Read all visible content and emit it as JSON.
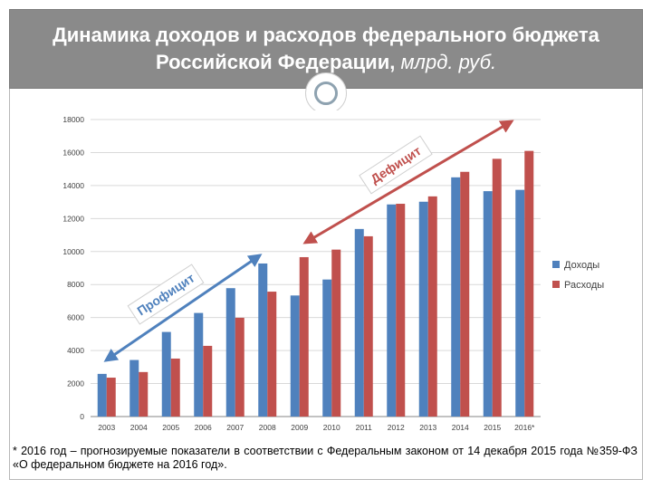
{
  "title": {
    "line1": "Динамика доходов и расходов федерального бюджета",
    "line2_main": "Российской Федерации,",
    "line2_unit": "млрд. руб."
  },
  "chart_data": {
    "type": "bar",
    "categories": [
      "2003",
      "2004",
      "2005",
      "2006",
      "2007",
      "2008",
      "2009",
      "2010",
      "2011",
      "2012",
      "2013",
      "2014",
      "2015",
      "2016*"
    ],
    "series": [
      {
        "name": "Доходы",
        "color": "#4f81bd",
        "values": [
          2586,
          3428,
          5127,
          6278,
          7781,
          9276,
          7337,
          8305,
          11367,
          12855,
          13019,
          14497,
          13659,
          13738
        ]
      },
      {
        "name": "Расходы",
        "color": "#c0504d",
        "values": [
          2358,
          2698,
          3514,
          4285,
          5986,
          7570,
          9660,
          10117,
          10925,
          12895,
          13343,
          14831,
          15620,
          16099
        ]
      }
    ],
    "yticks": [
      "0",
      "2000",
      "4000",
      "6000",
      "8000",
      "10000",
      "12000",
      "14000",
      "16000",
      "18000"
    ],
    "ylim": [
      0,
      18000
    ],
    "grid": true,
    "legend": "right",
    "annotations": [
      {
        "text": "Профицит",
        "color": "#4f81bd"
      },
      {
        "text": "Дефицит",
        "color": "#c0504d"
      }
    ]
  },
  "footnote": "* 2016 год – прогнозируемые показатели в соответствии с Федеральным законом от 14 декабря 2015 года №359-ФЗ «О федеральном бюджете на 2016 год»."
}
